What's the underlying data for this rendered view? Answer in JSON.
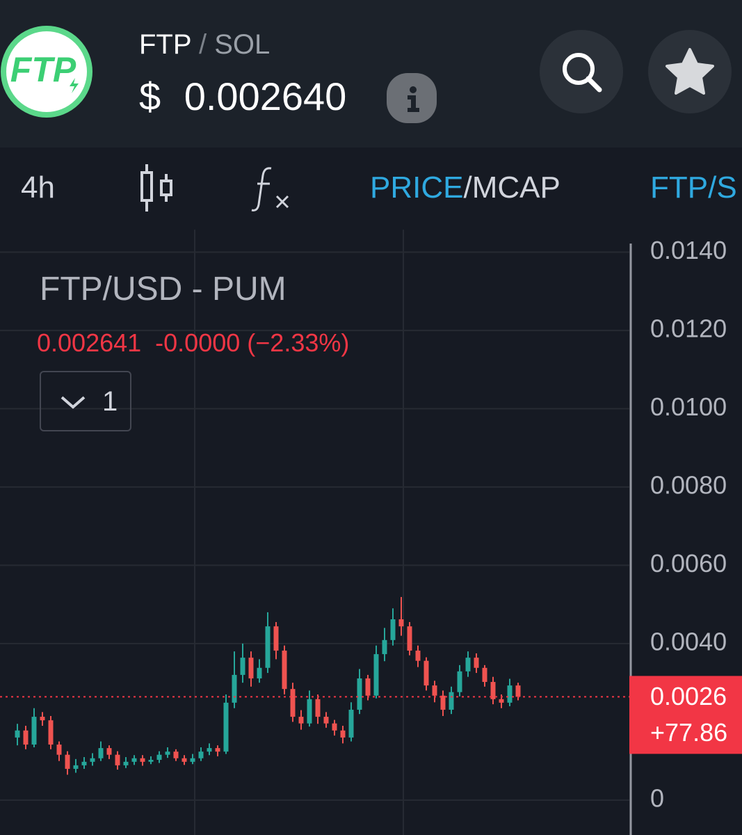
{
  "header": {
    "logo": "FTP",
    "base": "FTP",
    "separator": "/",
    "quote": "SOL",
    "currency": "$",
    "price": "0.002640"
  },
  "toolbar": {
    "interval": "4h",
    "price_tab": "PRICE",
    "separator": "/",
    "mcap_tab": "MCAP",
    "pair_tab": "FTP/S"
  },
  "chart_data": {
    "type": "candlestick",
    "title": "FTP/USD - PUM",
    "last": "0.002641",
    "change": "-0.0000",
    "change_pct": "(−2.33%)",
    "indicator_count": "1",
    "open": [
      0.0016,
      0.00178,
      0.00142,
      0.00213,
      0.00204,
      0.00142,
      0.00116,
      0.0008,
      0.00089,
      0.00098,
      0.00107,
      0.00133,
      0.00116,
      0.00089,
      0.00098,
      0.00107,
      0.00098,
      0.00103,
      0.00116,
      0.00124,
      0.00107,
      0.00098,
      0.00107,
      0.00124,
      0.00133,
      0.00124,
      0.00249,
      0.0032,
      0.00364,
      0.00311,
      0.00338,
      0.00444,
      0.00382,
      0.00284,
      0.00213,
      0.00196,
      0.00258,
      0.00213,
      0.00196,
      0.00178,
      0.0016,
      0.00231,
      0.00311,
      0.00267,
      0.00373,
      0.00409,
      0.00462,
      0.00444,
      0.00382,
      0.00356,
      0.00293,
      0.00267,
      0.00231,
      0.00276,
      0.00329,
      0.00364,
      0.00338,
      0.00302,
      0.00258,
      0.00249,
      0.00293
    ],
    "high": [
      0.00195,
      0.0019,
      0.00235,
      0.00225,
      0.00215,
      0.0015,
      0.00125,
      0.00105,
      0.0011,
      0.0012,
      0.0015,
      0.0014,
      0.00125,
      0.0011,
      0.00115,
      0.00115,
      0.00112,
      0.00125,
      0.00135,
      0.0013,
      0.00115,
      0.00118,
      0.00135,
      0.00145,
      0.0014,
      0.0027,
      0.0038,
      0.004,
      0.0038,
      0.0036,
      0.0048,
      0.00455,
      0.00395,
      0.003,
      0.0023,
      0.0028,
      0.0027,
      0.00225,
      0.00205,
      0.0019,
      0.0025,
      0.00335,
      0.0032,
      0.00395,
      0.0044,
      0.0049,
      0.00519,
      0.00455,
      0.00395,
      0.00365,
      0.00305,
      0.0028,
      0.0029,
      0.00345,
      0.0038,
      0.00375,
      0.00345,
      0.00315,
      0.0027,
      0.0031,
      0.003
    ],
    "low": [
      0.0014,
      0.0013,
      0.00135,
      0.0019,
      0.0013,
      0.001,
      0.00065,
      0.0007,
      0.0008,
      0.00088,
      0.001,
      0.00105,
      0.00078,
      0.00082,
      0.0009,
      0.00088,
      0.00092,
      0.00095,
      0.00108,
      0.001,
      0.0009,
      0.00092,
      0.001,
      0.00115,
      0.00112,
      0.00118,
      0.00235,
      0.003,
      0.0029,
      0.003,
      0.00325,
      0.0036,
      0.0027,
      0.002,
      0.0018,
      0.00188,
      0.00195,
      0.00185,
      0.00165,
      0.00145,
      0.0015,
      0.0022,
      0.00255,
      0.0026,
      0.00355,
      0.00395,
      0.0042,
      0.0037,
      0.0034,
      0.0028,
      0.0025,
      0.00215,
      0.0022,
      0.00265,
      0.00315,
      0.00325,
      0.0029,
      0.00245,
      0.00235,
      0.0024,
      0.00255
    ],
    "close": [
      0.00178,
      0.00142,
      0.00213,
      0.00204,
      0.00142,
      0.00116,
      0.0008,
      0.00089,
      0.00098,
      0.00107,
      0.00133,
      0.00116,
      0.00089,
      0.00098,
      0.00107,
      0.00098,
      0.00103,
      0.00116,
      0.00124,
      0.00107,
      0.00098,
      0.00107,
      0.00124,
      0.00133,
      0.00124,
      0.00249,
      0.0032,
      0.00364,
      0.00311,
      0.00338,
      0.00444,
      0.00382,
      0.00284,
      0.00213,
      0.00196,
      0.00258,
      0.00213,
      0.00196,
      0.00178,
      0.0016,
      0.00231,
      0.00311,
      0.00267,
      0.00373,
      0.00409,
      0.00462,
      0.00444,
      0.00382,
      0.00356,
      0.00293,
      0.00267,
      0.00231,
      0.00276,
      0.00329,
      0.00364,
      0.00338,
      0.00302,
      0.00258,
      0.00249,
      0.00293,
      0.00264
    ],
    "up_color": "#26a69a",
    "down_color": "#ef5350",
    "ylim": [
      -0.00089,
      0.01413
    ],
    "yticks": [
      {
        "value": 0,
        "label": "0"
      },
      {
        "value": 0.004,
        "label": "0.0040"
      },
      {
        "value": 0.006,
        "label": "0.0060"
      },
      {
        "value": 0.008,
        "label": "0.0080"
      },
      {
        "value": 0.01,
        "label": "0.0100"
      },
      {
        "value": 0.012,
        "label": "0.0120"
      },
      {
        "value": 0.014,
        "label": "0.0140"
      }
    ],
    "grid": true,
    "price_line": {
      "value": 0.00264,
      "label": "0.0026"
    },
    "change_label": "+77.86"
  }
}
